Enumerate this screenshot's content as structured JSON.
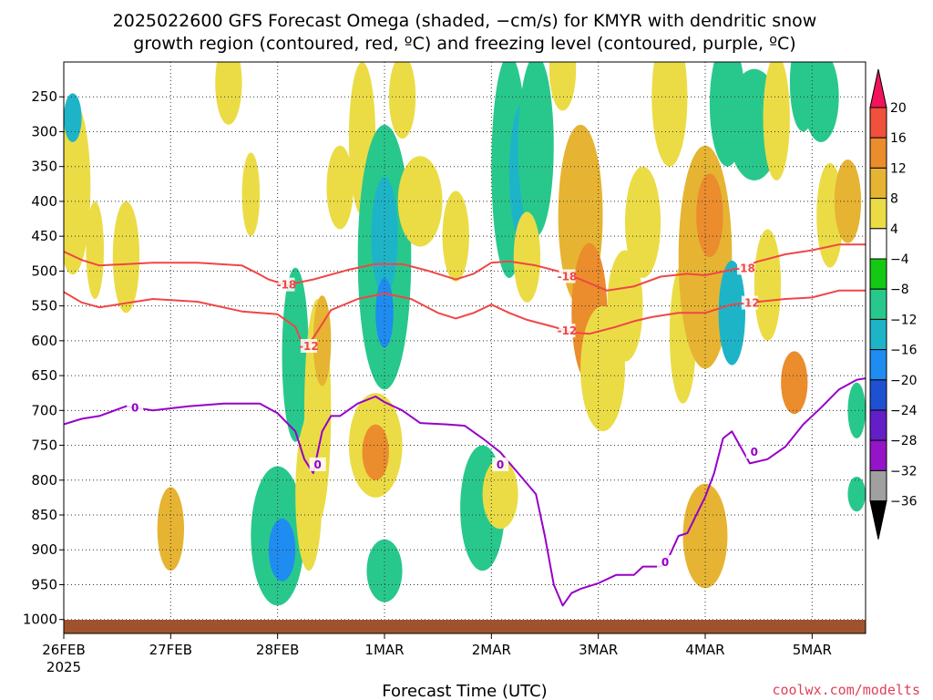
{
  "title": {
    "line1": "2025022600 GFS Forecast Omega (shaded, −cm/s) for KMYR with dendritic snow",
    "line2": "growth region (contoured, red, ºC) and freezing level (contoured, purple, ºC)"
  },
  "credit": "coolwx.com/modelts",
  "chart_data": {
    "type": "heatmap",
    "xlabel": "Forecast Time (UTC)",
    "ylabel": "",
    "x_unit": "forecast hour from 2025-02-26 00 UTC",
    "xlim": [
      0,
      180
    ],
    "x_ticks": [
      {
        "x": 0,
        "label": "26FEB",
        "sub": "2025"
      },
      {
        "x": 24,
        "label": "27FEB",
        "sub": ""
      },
      {
        "x": 48,
        "label": "28FEB",
        "sub": ""
      },
      {
        "x": 72,
        "label": "1MAR",
        "sub": ""
      },
      {
        "x": 96,
        "label": "2MAR",
        "sub": ""
      },
      {
        "x": 120,
        "label": "3MAR",
        "sub": ""
      },
      {
        "x": 144,
        "label": "4MAR",
        "sub": ""
      },
      {
        "x": 168,
        "label": "5MAR",
        "sub": ""
      }
    ],
    "y_unit": "hPa",
    "ylim": [
      1020,
      200
    ],
    "y_ticks": [
      250,
      300,
      350,
      400,
      450,
      500,
      550,
      600,
      650,
      700,
      750,
      800,
      850,
      900,
      950,
      1000
    ],
    "grid": true,
    "colorbar": {
      "ticks": [
        "20",
        "16",
        "12",
        "8",
        "4",
        "−4",
        "−8",
        "−12",
        "−16",
        "−20",
        "−24",
        "−28",
        "−32",
        "−36"
      ],
      "colors": [
        "#f0145a",
        "#f0503c",
        "#eb8c2d",
        "#e6b432",
        "#ebdc46",
        "#ffffff",
        "#14c814",
        "#28c88c",
        "#1eb4c8",
        "#1e8cf0",
        "#1e50d2",
        "#641ec8",
        "#9614c8",
        "#a0a0a0",
        "#000000"
      ]
    },
    "omega_cells": [
      {
        "t": 2,
        "p": 380,
        "dt": 4,
        "dp": 250,
        "v": 6
      },
      {
        "t": 2,
        "p": 280,
        "dt": 2,
        "dp": 70,
        "v": -12
      },
      {
        "t": 7,
        "p": 470,
        "dt": 2,
        "dp": 140,
        "v": 4
      },
      {
        "t": 14,
        "p": 480,
        "dt": 3,
        "dp": 160,
        "v": 4
      },
      {
        "t": 24,
        "p": 870,
        "dt": 3,
        "dp": 120,
        "v": 8
      },
      {
        "t": 37,
        "p": 230,
        "dt": 3,
        "dp": 120,
        "v": 4
      },
      {
        "t": 42,
        "p": 390,
        "dt": 2,
        "dp": 120,
        "v": 4
      },
      {
        "t": 48,
        "p": 880,
        "dt": 6,
        "dp": 200,
        "v": -8
      },
      {
        "t": 49,
        "p": 900,
        "dt": 3,
        "dp": 90,
        "v": -16
      },
      {
        "t": 52,
        "p": 620,
        "dt": 3,
        "dp": 250,
        "v": -8
      },
      {
        "t": 55,
        "p": 820,
        "dt": 3,
        "dp": 220,
        "v": 4
      },
      {
        "t": 57,
        "p": 700,
        "dt": 3,
        "dp": 320,
        "v": 4
      },
      {
        "t": 58,
        "p": 600,
        "dt": 2,
        "dp": 130,
        "v": 8
      },
      {
        "t": 62,
        "p": 380,
        "dt": 3,
        "dp": 120,
        "v": 4
      },
      {
        "t": 67,
        "p": 310,
        "dt": 3,
        "dp": 220,
        "v": 4
      },
      {
        "t": 72,
        "p": 480,
        "dt": 6,
        "dp": 380,
        "v": -8
      },
      {
        "t": 72,
        "p": 450,
        "dt": 3,
        "dp": 170,
        "v": -12
      },
      {
        "t": 72,
        "p": 560,
        "dt": 2,
        "dp": 100,
        "v": -16
      },
      {
        "t": 72,
        "p": 930,
        "dt": 4,
        "dp": 90,
        "v": -8
      },
      {
        "t": 70,
        "p": 750,
        "dt": 6,
        "dp": 150,
        "v": 4
      },
      {
        "t": 70,
        "p": 760,
        "dt": 3,
        "dp": 80,
        "v": 12
      },
      {
        "t": 76,
        "p": 250,
        "dt": 3,
        "dp": 120,
        "v": 4
      },
      {
        "t": 80,
        "p": 400,
        "dt": 5,
        "dp": 130,
        "v": 4
      },
      {
        "t": 88,
        "p": 450,
        "dt": 3,
        "dp": 130,
        "v": 4
      },
      {
        "t": 94,
        "p": 840,
        "dt": 5,
        "dp": 180,
        "v": -8
      },
      {
        "t": 98,
        "p": 820,
        "dt": 4,
        "dp": 100,
        "v": 4
      },
      {
        "t": 100,
        "p": 350,
        "dt": 4,
        "dp": 320,
        "v": -8
      },
      {
        "t": 103,
        "p": 360,
        "dt": 3,
        "dp": 200,
        "v": -12
      },
      {
        "t": 106,
        "p": 320,
        "dt": 4,
        "dp": 260,
        "v": -8
      },
      {
        "t": 104,
        "p": 480,
        "dt": 3,
        "dp": 130,
        "v": 4
      },
      {
        "t": 112,
        "p": 210,
        "dt": 3,
        "dp": 120,
        "v": 4
      },
      {
        "t": 116,
        "p": 420,
        "dt": 5,
        "dp": 260,
        "v": 8
      },
      {
        "t": 118,
        "p": 560,
        "dt": 4,
        "dp": 200,
        "v": 12
      },
      {
        "t": 121,
        "p": 640,
        "dt": 5,
        "dp": 180,
        "v": 4
      },
      {
        "t": 126,
        "p": 550,
        "dt": 4,
        "dp": 160,
        "v": 4
      },
      {
        "t": 130,
        "p": 430,
        "dt": 4,
        "dp": 160,
        "v": 4
      },
      {
        "t": 136,
        "p": 250,
        "dt": 4,
        "dp": 200,
        "v": 4
      },
      {
        "t": 139,
        "p": 590,
        "dt": 3,
        "dp": 200,
        "v": 4
      },
      {
        "t": 144,
        "p": 480,
        "dt": 6,
        "dp": 320,
        "v": 8
      },
      {
        "t": 145,
        "p": 420,
        "dt": 3,
        "dp": 120,
        "v": 12
      },
      {
        "t": 144,
        "p": 880,
        "dt": 5,
        "dp": 150,
        "v": 8
      },
      {
        "t": 149,
        "p": 260,
        "dt": 4,
        "dp": 180,
        "v": -8
      },
      {
        "t": 150,
        "p": 560,
        "dt": 3,
        "dp": 150,
        "v": -12
      },
      {
        "t": 155,
        "p": 290,
        "dt": 6,
        "dp": 160,
        "v": -8
      },
      {
        "t": 158,
        "p": 520,
        "dt": 3,
        "dp": 160,
        "v": 4
      },
      {
        "t": 160,
        "p": 280,
        "dt": 3,
        "dp": 180,
        "v": 4
      },
      {
        "t": 164,
        "p": 660,
        "dt": 3,
        "dp": 90,
        "v": 12
      },
      {
        "t": 166,
        "p": 230,
        "dt": 3,
        "dp": 140,
        "v": -8
      },
      {
        "t": 170,
        "p": 250,
        "dt": 4,
        "dp": 130,
        "v": -8
      },
      {
        "t": 172,
        "p": 420,
        "dt": 3,
        "dp": 150,
        "v": 4
      },
      {
        "t": 176,
        "p": 400,
        "dt": 3,
        "dp": 120,
        "v": 8
      },
      {
        "t": 178,
        "p": 700,
        "dt": 2,
        "dp": 80,
        "v": -8
      },
      {
        "t": 178,
        "p": 820,
        "dt": 2,
        "dp": 50,
        "v": -8
      }
    ],
    "series": [
      {
        "name": "-18",
        "color": "#f04646",
        "x": [
          0,
          4,
          8,
          20,
          30,
          40,
          44,
          46,
          50,
          56,
          64,
          70,
          76,
          82,
          88,
          92,
          96,
          100,
          106,
          112,
          116,
          122,
          128,
          134,
          140,
          144,
          150,
          156,
          162,
          168,
          174,
          180
        ],
        "y": [
          472,
          484,
          492,
          488,
          488,
          492,
          505,
          512,
          520,
          512,
          498,
          490,
          490,
          500,
          512,
          504,
          488,
          486,
          492,
          502,
          512,
          528,
          522,
          508,
          504,
          506,
          498,
          486,
          476,
          470,
          462,
          462
        ],
        "labels": [
          {
            "x": 50,
            "y": 520
          },
          {
            "x": 113,
            "y": 508
          },
          {
            "x": 153,
            "y": 496
          }
        ]
      },
      {
        "name": "-12",
        "color": "#f04646",
        "x": [
          0,
          4,
          8,
          20,
          30,
          40,
          48,
          52,
          54,
          56,
          60,
          66,
          72,
          78,
          84,
          88,
          92,
          96,
          100,
          104,
          110,
          114,
          118,
          124,
          128,
          132,
          138,
          144,
          150,
          156,
          162,
          168,
          174,
          180
        ],
        "y": [
          530,
          545,
          552,
          540,
          544,
          558,
          562,
          580,
          612,
          596,
          556,
          540,
          532,
          540,
          560,
          568,
          560,
          548,
          560,
          570,
          580,
          588,
          590,
          580,
          572,
          566,
          560,
          560,
          548,
          544,
          540,
          538,
          528,
          528
        ],
        "labels": [
          {
            "x": 55,
            "y": 608
          },
          {
            "x": 113,
            "y": 586
          },
          {
            "x": 154,
            "y": 546
          }
        ]
      },
      {
        "name": "0",
        "color": "#9600c8",
        "x": [
          0,
          4,
          8,
          14,
          20,
          28,
          36,
          44,
          48,
          52,
          54,
          56,
          58,
          60,
          62,
          66,
          70,
          72,
          76,
          80,
          86,
          90,
          94,
          98,
          102,
          106,
          108,
          110,
          112,
          114,
          116,
          120,
          124,
          128,
          130,
          134,
          136,
          138,
          140,
          144,
          146,
          148,
          150,
          154,
          158,
          162,
          166,
          170,
          174,
          178,
          180
        ],
        "y": [
          720,
          712,
          708,
          694,
          700,
          694,
          690,
          690,
          704,
          730,
          770,
          790,
          730,
          708,
          708,
          690,
          680,
          688,
          700,
          718,
          720,
          722,
          740,
          760,
          790,
          820,
          880,
          950,
          980,
          962,
          956,
          948,
          936,
          936,
          924,
          924,
          908,
          880,
          876,
          824,
          790,
          740,
          730,
          776,
          770,
          752,
          720,
          696,
          670,
          656,
          654
        ],
        "labels": [
          {
            "x": 16,
            "y": 696
          },
          {
            "x": 57,
            "y": 778
          },
          {
            "x": 98,
            "y": 778
          },
          {
            "x": 135,
            "y": 918
          },
          {
            "x": 155,
            "y": 760
          }
        ]
      }
    ]
  }
}
